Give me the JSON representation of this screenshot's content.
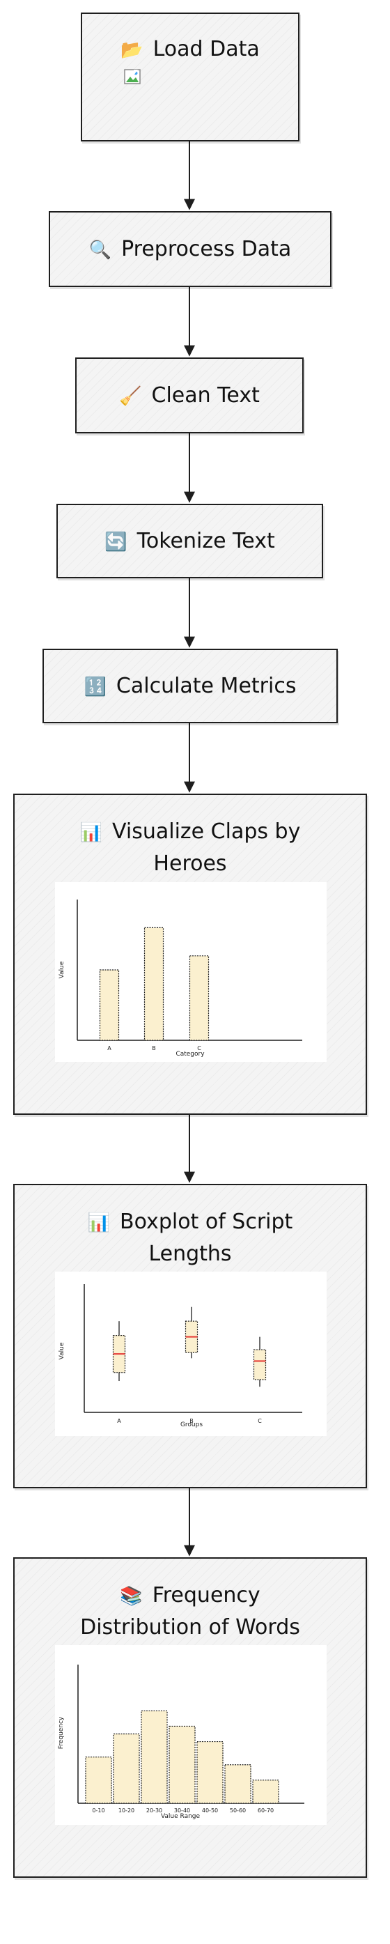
{
  "steps": {
    "load": {
      "icon": "folder-icon",
      "glyph": "📂",
      "label": "Load Data"
    },
    "preprocess": {
      "icon": "magnifier-icon",
      "glyph": "🔍",
      "label": "Preprocess Data"
    },
    "clean": {
      "icon": "broom-icon",
      "glyph": "🧹",
      "label": "Clean Text"
    },
    "tokenize": {
      "icon": "refresh-icon",
      "glyph": "🔄",
      "label": "Tokenize Text"
    },
    "metrics": {
      "icon": "numbers-icon",
      "glyph": "🔢",
      "label": "Calculate Metrics"
    },
    "claps": {
      "icon": "bar-chart-icon",
      "glyph": "📊",
      "label_line1": "Visualize Claps by",
      "label_line2": "Heroes"
    },
    "boxplot": {
      "icon": "bar-chart-icon",
      "glyph": "📊",
      "label_line1": "Boxplot of Script",
      "label_line2": "Lengths"
    },
    "frequency": {
      "icon": "books-icon",
      "glyph": "📚",
      "label_line1": "Frequency",
      "label_line2": "Distribution of Words"
    }
  },
  "colors": {
    "fill": "#fbf0cf",
    "median": "#e53935",
    "ink": "#1e1e1e"
  },
  "chart_data": [
    {
      "type": "bar",
      "categories": [
        "A",
        "B",
        "C"
      ],
      "values": [
        5,
        8,
        6
      ],
      "xlabel": "Category",
      "ylabel": "Value",
      "ylim": [
        0,
        10
      ]
    },
    {
      "type": "box",
      "categories": [
        "A",
        "B",
        "C"
      ],
      "boxes": [
        {
          "whisker_low": 4.2,
          "q1": 4.8,
          "median": 6.1,
          "q3": 7.4,
          "whisker_high": 8.4
        },
        {
          "whisker_low": 5.8,
          "q1": 6.2,
          "median": 7.3,
          "q3": 8.4,
          "whisker_high": 9.4
        },
        {
          "whisker_low": 3.8,
          "q1": 4.3,
          "median": 5.6,
          "q3": 6.4,
          "whisker_high": 7.3
        }
      ],
      "xlabel": "Groups",
      "ylabel": "Value",
      "ylim": [
        2,
        11
      ]
    },
    {
      "type": "bar",
      "categories": [
        "0-10",
        "10-20",
        "20-30",
        "30-40",
        "40-50",
        "50-60",
        "60-70"
      ],
      "values": [
        6,
        9,
        12,
        10,
        8,
        5,
        3
      ],
      "xlabel": "Value Range",
      "ylabel": "Frequency",
      "ylim": [
        0,
        18
      ]
    }
  ]
}
